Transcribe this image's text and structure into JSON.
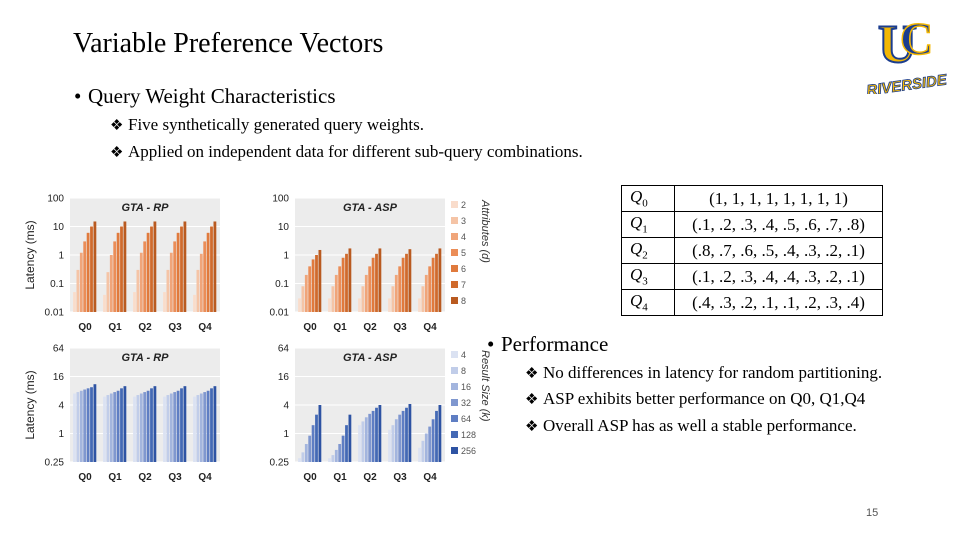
{
  "slide": {
    "title": "Variable Preference Vectors",
    "bullet1": "Query Weight Characteristics",
    "sub1": [
      "Five synthetically generated query weights.",
      "Applied on independent data for different sub-query combinations."
    ],
    "bullet2": "Performance",
    "sub2": [
      "No differences in latency for random partitioning.",
      "ASP exhibits better performance on Q0, Q1,Q4",
      "Overall ASP has as well a stable performance."
    ],
    "bullet_glyph": "•",
    "sub_glyph": "❖",
    "page_number": "15"
  },
  "logo": {
    "letters": "UC",
    "wordmark": "RIVERSIDE",
    "colors": {
      "gold": "#f2b705",
      "blue": "#1b3d8f"
    }
  },
  "query_table": [
    {
      "name": "Q",
      "sub": "0",
      "vector": "(1, 1, 1, 1, 1, 1, 1, 1)"
    },
    {
      "name": "Q",
      "sub": "1",
      "vector": "(.1, .2, .3, .4, .5, .6, .7, .8)"
    },
    {
      "name": "Q",
      "sub": "2",
      "vector": "(.8, .7, .6, .5, .4, .3, .2, .1)"
    },
    {
      "name": "Q",
      "sub": "3",
      "vector": "(.1, .2, .3, .4, .4, .3, .2, .1)"
    },
    {
      "name": "Q",
      "sub": "4",
      "vector": "(.4, .3, .2, .1, .1, .2, .3, .4)"
    }
  ],
  "chart_data": [
    {
      "type": "bar",
      "title": "GTA - RP",
      "ylabel": "Latency (ms)",
      "scale": "log",
      "categories": [
        "Q0",
        "Q1",
        "Q2",
        "Q3",
        "Q4"
      ],
      "yticks": [
        "100",
        "10",
        "1",
        "0.1",
        "0.01"
      ],
      "ylim": [
        0.01,
        100
      ],
      "series": [
        {
          "name": "2",
          "values": [
            0.05,
            0.04,
            0.05,
            0.05,
            0.04
          ]
        },
        {
          "name": "3",
          "values": [
            0.3,
            0.25,
            0.3,
            0.3,
            0.3
          ]
        },
        {
          "name": "4",
          "values": [
            1.2,
            1.0,
            1.2,
            1.2,
            1.1
          ]
        },
        {
          "name": "5",
          "values": [
            3,
            3,
            3,
            3,
            3
          ]
        },
        {
          "name": "6",
          "values": [
            6,
            6,
            6,
            6,
            6
          ]
        },
        {
          "name": "7",
          "values": [
            10,
            10,
            10,
            10,
            10
          ]
        },
        {
          "name": "8",
          "values": [
            15,
            15,
            15,
            15,
            15
          ]
        }
      ]
    },
    {
      "type": "bar",
      "title": "GTA - ASP",
      "scale": "log",
      "categories": [
        "Q0",
        "Q1",
        "Q2",
        "Q3",
        "Q4"
      ],
      "yticks": [
        "100",
        "10",
        "1",
        "0.1",
        "0.01"
      ],
      "ylim": [
        0.01,
        100
      ],
      "legend_title": "Attributes (d)",
      "series": [
        {
          "name": "2",
          "values": [
            0.03,
            0.03,
            0.03,
            0.03,
            0.03
          ]
        },
        {
          "name": "3",
          "values": [
            0.08,
            0.08,
            0.08,
            0.08,
            0.08
          ]
        },
        {
          "name": "4",
          "values": [
            0.2,
            0.2,
            0.2,
            0.2,
            0.2
          ]
        },
        {
          "name": "5",
          "values": [
            0.4,
            0.4,
            0.4,
            0.4,
            0.4
          ]
        },
        {
          "name": "6",
          "values": [
            0.7,
            0.8,
            0.8,
            0.8,
            0.8
          ]
        },
        {
          "name": "7",
          "values": [
            1.0,
            1.1,
            1.1,
            1.1,
            1.1
          ]
        },
        {
          "name": "8",
          "values": [
            1.5,
            1.7,
            1.7,
            1.6,
            1.7
          ]
        }
      ]
    },
    {
      "type": "bar",
      "title": "GTA - RP",
      "ylabel": "Latency (ms)",
      "scale": "log",
      "categories": [
        "Q0",
        "Q1",
        "Q2",
        "Q3",
        "Q4"
      ],
      "yticks": [
        "64",
        "16",
        "4",
        "1",
        "0.25"
      ],
      "ylim": [
        0.25,
        64
      ],
      "series": [
        {
          "name": "4",
          "values": [
            7,
            6,
            6,
            6,
            6
          ]
        },
        {
          "name": "8",
          "values": [
            7.5,
            6.5,
            6.5,
            6.5,
            6.5
          ]
        },
        {
          "name": "16",
          "values": [
            8,
            7,
            7,
            7,
            7
          ]
        },
        {
          "name": "32",
          "values": [
            8.5,
            7.5,
            7.5,
            7.5,
            7.5
          ]
        },
        {
          "name": "64",
          "values": [
            9,
            8,
            8,
            8,
            8
          ]
        },
        {
          "name": "128",
          "values": [
            9.5,
            9,
            9,
            9,
            9
          ]
        },
        {
          "name": "256",
          "values": [
            11,
            10,
            10,
            10,
            10
          ]
        }
      ]
    },
    {
      "type": "bar",
      "title": "GTA - ASP",
      "scale": "log",
      "categories": [
        "Q0",
        "Q1",
        "Q2",
        "Q3",
        "Q4"
      ],
      "yticks": [
        "64",
        "16",
        "4",
        "1",
        "0.25"
      ],
      "ylim": [
        0.25,
        64
      ],
      "legend_title": "Result Size (k)",
      "series": [
        {
          "name": "4",
          "values": [
            0.3,
            0.3,
            1.5,
            1.2,
            0.5
          ]
        },
        {
          "name": "8",
          "values": [
            0.4,
            0.35,
            1.8,
            1.5,
            0.7
          ]
        },
        {
          "name": "16",
          "values": [
            0.6,
            0.45,
            2.2,
            2,
            1
          ]
        },
        {
          "name": "32",
          "values": [
            0.9,
            0.6,
            2.6,
            2.5,
            1.4
          ]
        },
        {
          "name": "64",
          "values": [
            1.5,
            0.9,
            3,
            3,
            2
          ]
        },
        {
          "name": "128",
          "values": [
            2.5,
            1.5,
            3.5,
            3.5,
            3
          ]
        },
        {
          "name": "256",
          "values": [
            4,
            2.5,
            4,
            4.2,
            4
          ]
        }
      ]
    }
  ],
  "colors": {
    "orange": [
      "#f9dccb",
      "#f5c4a6",
      "#f0a57a",
      "#eb8d57",
      "#e07a3d",
      "#d06a2c",
      "#b95a20"
    ],
    "blue": [
      "#dbe2f2",
      "#c1cde9",
      "#a3b5de",
      "#7f97cf",
      "#5f7ec3",
      "#4469b5",
      "#2e53a3"
    ]
  }
}
